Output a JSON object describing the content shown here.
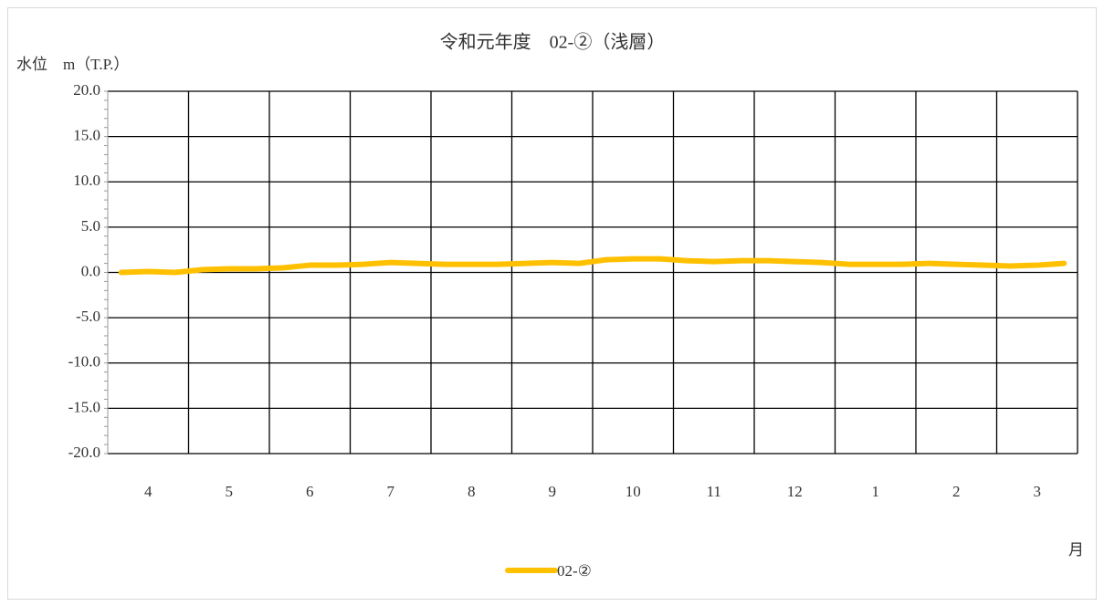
{
  "chart_data": {
    "type": "line",
    "title": "令和元年度　02-②（浅層）",
    "y_label": "水位　m（T.P.）",
    "x_label": "月",
    "categories": [
      null,
      "4",
      null,
      null,
      "5",
      null,
      null,
      "6",
      null,
      null,
      "7",
      null,
      null,
      "8",
      null,
      null,
      "9",
      null,
      null,
      "10",
      null,
      null,
      "11",
      null,
      null,
      "12",
      null,
      null,
      "1",
      null,
      null,
      "2",
      null,
      null,
      "3",
      null
    ],
    "series": [
      {
        "name": "02-②",
        "color": "#ffc000",
        "values": [
          0.0,
          0.1,
          0.0,
          0.3,
          0.4,
          0.4,
          0.5,
          0.8,
          0.8,
          0.9,
          1.1,
          1.0,
          0.9,
          0.9,
          0.9,
          1.0,
          1.1,
          1.0,
          1.4,
          1.5,
          1.5,
          1.3,
          1.2,
          1.3,
          1.3,
          1.2,
          1.1,
          0.9,
          0.9,
          0.9,
          1.0,
          0.9,
          0.8,
          0.7,
          0.8,
          1.0
        ]
      }
    ],
    "ylim": [
      -20,
      20
    ],
    "yticks": [
      {
        "value": -20,
        "label": "-20.0"
      },
      {
        "value": -15,
        "label": "-15.0"
      },
      {
        "value": -10,
        "label": "-10.0"
      },
      {
        "value": -5,
        "label": "-5.0"
      },
      {
        "value": 0,
        "label": "0.0"
      },
      {
        "value": 5,
        "label": "5.0"
      },
      {
        "value": 10,
        "label": "10.0"
      },
      {
        "value": 15,
        "label": "15.0"
      },
      {
        "value": 20,
        "label": "20.0"
      }
    ],
    "grid": true,
    "legend": "bottom"
  }
}
